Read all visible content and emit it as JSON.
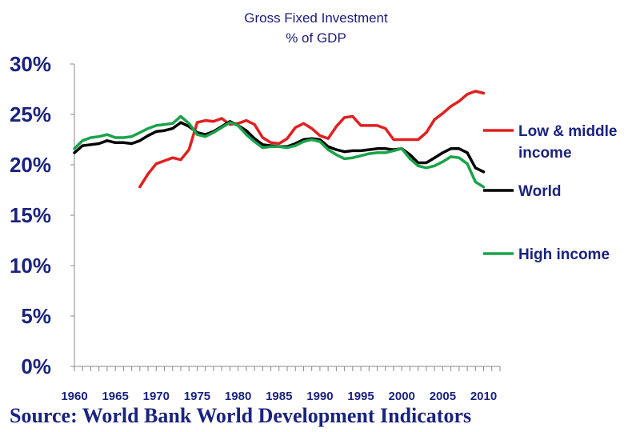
{
  "chart_data": {
    "type": "line",
    "title_lines": [
      "Gross Fixed Investment",
      "% of GDP"
    ],
    "yticks": [
      "0%",
      "5%",
      "10%",
      "15%",
      "20%",
      "25%",
      "30%"
    ],
    "ytick_values": [
      0,
      5,
      10,
      15,
      20,
      25,
      30
    ],
    "ylim": [
      0,
      30
    ],
    "xlim": [
      1960,
      2012
    ],
    "xticks": [
      "1960",
      "1965",
      "1970",
      "1975",
      "1980",
      "1985",
      "1990",
      "1995",
      "2000",
      "2005",
      "2010"
    ],
    "xtick_values": [
      1960,
      1965,
      1970,
      1975,
      1980,
      1985,
      1990,
      1995,
      2000,
      2005,
      2010
    ],
    "grid": false,
    "legend_placement": "right",
    "series": [
      {
        "name": "Low & middle income",
        "legend_lines": [
          "Low & middle",
          "income"
        ],
        "color": "#e02020",
        "x": [
          1968,
          1969,
          1970,
          1971,
          1972,
          1973,
          1974,
          1975,
          1976,
          1977,
          1978,
          1979,
          1980,
          1981,
          1982,
          1983,
          1984,
          1985,
          1986,
          1987,
          1988,
          1989,
          1990,
          1991,
          1992,
          1993,
          1994,
          1995,
          1996,
          1997,
          1998,
          1999,
          2000,
          2001,
          2002,
          2003,
          2004,
          2005,
          2006,
          2007,
          2008,
          2009,
          2010
        ],
        "values": [
          17.8,
          19.1,
          20.1,
          20.4,
          20.7,
          20.5,
          21.5,
          24.2,
          24.4,
          24.3,
          24.6,
          24.0,
          24.1,
          24.4,
          24.0,
          22.7,
          22.2,
          22.1,
          22.6,
          23.7,
          24.1,
          23.6,
          22.9,
          22.6,
          23.8,
          24.7,
          24.8,
          23.9,
          23.9,
          23.9,
          23.6,
          22.5,
          22.5,
          22.5,
          22.5,
          23.2,
          24.5,
          25.1,
          25.8,
          26.3,
          27.0,
          27.3,
          27.1
        ]
      },
      {
        "name": "World",
        "legend_lines": [
          "World"
        ],
        "color": "#000000",
        "x": [
          1960,
          1961,
          1962,
          1963,
          1964,
          1965,
          1966,
          1967,
          1968,
          1969,
          1970,
          1971,
          1972,
          1973,
          1974,
          1975,
          1976,
          1977,
          1978,
          1979,
          1980,
          1981,
          1982,
          1983,
          1984,
          1985,
          1986,
          1987,
          1988,
          1989,
          1990,
          1991,
          1992,
          1993,
          1994,
          1995,
          1996,
          1997,
          1998,
          1999,
          2000,
          2001,
          2002,
          2003,
          2004,
          2005,
          2006,
          2007,
          2008,
          2009,
          2010
        ],
        "values": [
          21.2,
          21.9,
          22.0,
          22.1,
          22.4,
          22.2,
          22.2,
          22.1,
          22.4,
          22.9,
          23.3,
          23.4,
          23.6,
          24.2,
          23.8,
          23.2,
          23.0,
          23.3,
          23.8,
          24.3,
          23.9,
          23.4,
          22.6,
          22.0,
          21.9,
          21.8,
          21.8,
          22.1,
          22.5,
          22.6,
          22.5,
          21.8,
          21.5,
          21.3,
          21.4,
          21.4,
          21.5,
          21.6,
          21.6,
          21.5,
          21.6,
          21.0,
          20.2,
          20.2,
          20.7,
          21.2,
          21.6,
          21.6,
          21.2,
          19.7,
          19.3
        ]
      },
      {
        "name": "High income",
        "legend_lines": [
          "High income"
        ],
        "color": "#1aa34a",
        "x": [
          1960,
          1961,
          1962,
          1963,
          1964,
          1965,
          1966,
          1967,
          1968,
          1969,
          1970,
          1971,
          1972,
          1973,
          1974,
          1975,
          1976,
          1977,
          1978,
          1979,
          1980,
          1981,
          1982,
          1983,
          1984,
          1985,
          1986,
          1987,
          1988,
          1989,
          1990,
          1991,
          1992,
          1993,
          1994,
          1995,
          1996,
          1997,
          1998,
          1999,
          2000,
          2001,
          2002,
          2003,
          2004,
          2005,
          2006,
          2007,
          2008,
          2009,
          2010
        ],
        "values": [
          21.6,
          22.4,
          22.7,
          22.8,
          23.0,
          22.7,
          22.7,
          22.8,
          23.2,
          23.6,
          23.9,
          24.0,
          24.1,
          24.8,
          24.1,
          23.0,
          22.8,
          23.2,
          23.7,
          24.2,
          23.9,
          23.0,
          22.3,
          21.7,
          21.8,
          21.8,
          21.7,
          21.9,
          22.3,
          22.5,
          22.3,
          21.5,
          21.0,
          20.6,
          20.7,
          20.9,
          21.1,
          21.2,
          21.2,
          21.4,
          21.6,
          20.6,
          19.9,
          19.7,
          19.9,
          20.3,
          20.8,
          20.7,
          20.1,
          18.3,
          17.8
        ]
      }
    ]
  },
  "source_text": "Source: World Bank World Development Indicators"
}
